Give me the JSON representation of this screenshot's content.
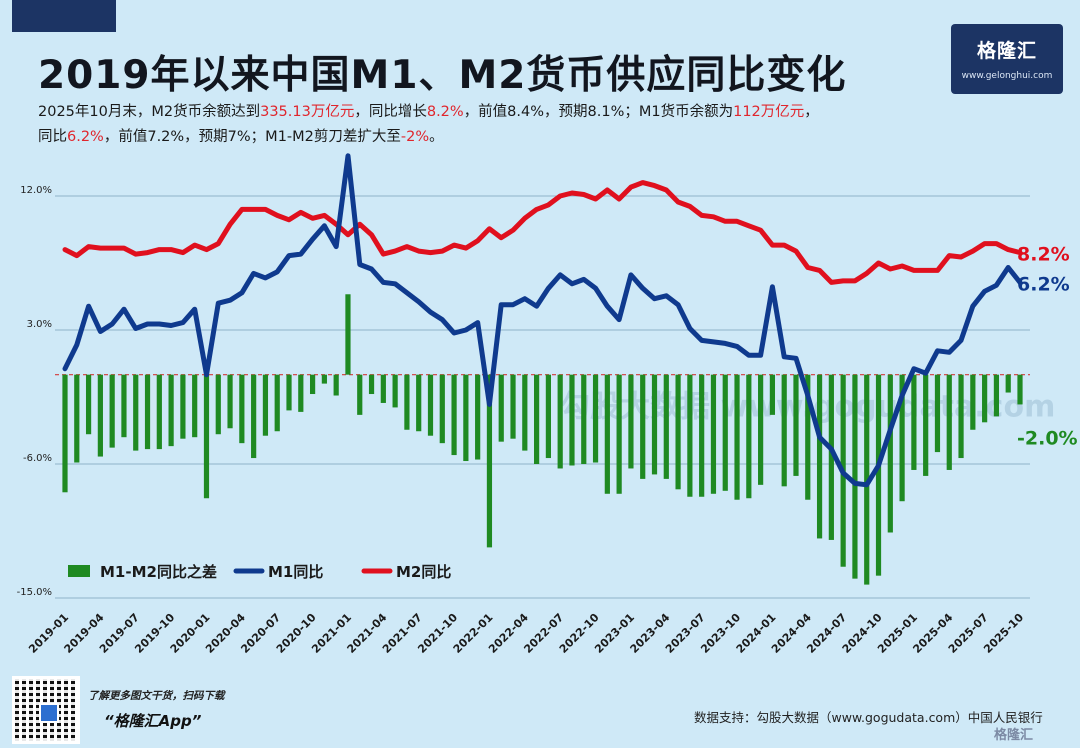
{
  "title": "2019年以来中国M1、M2货币供应同比变化",
  "brand": {
    "name": "格隆汇",
    "url": "www.gelonghui.com"
  },
  "subtitle": {
    "line1_parts": [
      {
        "text": "2025年10月末，M2货币余额达到",
        "red": false
      },
      {
        "text": "335.13万亿元",
        "red": true
      },
      {
        "text": "，同比增长",
        "red": false
      },
      {
        "text": "8.2%",
        "red": true
      },
      {
        "text": "，前值8.4%，预期8.1%；M1货币余额为",
        "red": false
      },
      {
        "text": "112万亿元",
        "red": true
      },
      {
        "text": "，",
        "red": false
      }
    ],
    "line2_parts": [
      {
        "text": "同比",
        "red": false
      },
      {
        "text": "6.2%",
        "red": true
      },
      {
        "text": "，前值7.2%，预期7%；M1-M2剪刀差扩大至",
        "red": false
      },
      {
        "text": "-2%",
        "red": true
      },
      {
        "text": "。",
        "red": false
      }
    ]
  },
  "chart_data": {
    "type": "line",
    "x": [
      "2019-01",
      "2019-02",
      "2019-03",
      "2019-04",
      "2019-05",
      "2019-06",
      "2019-07",
      "2019-08",
      "2019-09",
      "2019-10",
      "2019-11",
      "2019-12",
      "2020-01",
      "2020-02",
      "2020-03",
      "2020-04",
      "2020-05",
      "2020-06",
      "2020-07",
      "2020-08",
      "2020-09",
      "2020-10",
      "2020-11",
      "2020-12",
      "2021-01",
      "2021-02",
      "2021-03",
      "2021-04",
      "2021-05",
      "2021-06",
      "2021-07",
      "2021-08",
      "2021-09",
      "2021-10",
      "2021-11",
      "2021-12",
      "2022-01",
      "2022-02",
      "2022-03",
      "2022-04",
      "2022-05",
      "2022-06",
      "2022-07",
      "2022-08",
      "2022-09",
      "2022-10",
      "2022-11",
      "2022-12",
      "2023-01",
      "2023-02",
      "2023-03",
      "2023-04",
      "2023-05",
      "2023-06",
      "2023-07",
      "2023-08",
      "2023-09",
      "2023-10",
      "2023-11",
      "2023-12",
      "2024-01",
      "2024-02",
      "2024-03",
      "2024-04",
      "2024-05",
      "2024-06",
      "2024-07",
      "2024-08",
      "2024-09",
      "2024-10",
      "2024-11",
      "2024-12",
      "2025-01",
      "2025-02",
      "2025-03",
      "2025-04",
      "2025-05",
      "2025-06",
      "2025-07",
      "2025-08",
      "2025-09",
      "2025-10"
    ],
    "x_tick_labels": [
      "2019-01",
      "2019-04",
      "2019-07",
      "2019-10",
      "2020-01",
      "2020-04",
      "2020-07",
      "2020-10",
      "2021-01",
      "2021-04",
      "2021-07",
      "2021-10",
      "2022-01",
      "2022-04",
      "2022-07",
      "2022-10",
      "2023-01",
      "2023-04",
      "2023-07",
      "2023-10",
      "2024-01",
      "2024-04",
      "2024-07",
      "2024-10",
      "2025-01",
      "2025-04",
      "2025-07",
      "2025-10"
    ],
    "series": [
      {
        "name": "M1-M2同比之差",
        "kind": "bar",
        "color": "#1f8a22",
        "values": [
          -7.9,
          -5.9,
          -4.0,
          -5.5,
          -4.9,
          -4.2,
          -5.1,
          -5.0,
          -5.0,
          -4.8,
          -4.3,
          -4.2,
          -8.3,
          -4.0,
          -3.6,
          -4.6,
          -5.6,
          -4.1,
          -3.8,
          -2.4,
          -2.5,
          -1.3,
          -0.6,
          -1.4,
          5.4,
          -2.7,
          -1.3,
          -1.9,
          -2.2,
          -3.7,
          -3.8,
          -4.1,
          -4.6,
          -5.4,
          -5.8,
          -5.7,
          -11.6,
          -4.5,
          -4.3,
          -5.1,
          -6.0,
          -5.6,
          -6.3,
          -6.1,
          -6.0,
          -5.9,
          -8.0,
          -8.0,
          -6.3,
          -7.0,
          -6.7,
          -7.0,
          -7.7,
          -8.2,
          -8.2,
          -8.0,
          -7.8,
          -8.4,
          -8.3,
          -7.4,
          -2.7,
          -7.5,
          -6.8,
          -8.4,
          -11.0,
          -11.1,
          -12.9,
          -13.7,
          -14.1,
          -13.5,
          -10.6,
          -8.5,
          -6.4,
          -6.8,
          -5.2,
          -6.4,
          -5.6,
          -3.7,
          -3.2,
          -2.8,
          -1.2,
          -2.0
        ]
      },
      {
        "name": "M1同比",
        "kind": "line",
        "color": "#0f3a8e",
        "values": [
          0.4,
          2.0,
          4.6,
          2.9,
          3.4,
          4.4,
          3.1,
          3.4,
          3.4,
          3.3,
          3.5,
          4.4,
          0.0,
          4.8,
          5.0,
          5.5,
          6.8,
          6.5,
          6.9,
          8.0,
          8.1,
          9.1,
          10.0,
          8.6,
          14.7,
          7.4,
          7.1,
          6.2,
          6.1,
          5.5,
          4.9,
          4.2,
          3.7,
          2.8,
          3.0,
          3.5,
          -2.0,
          4.7,
          4.7,
          5.1,
          4.6,
          5.8,
          6.7,
          6.1,
          6.4,
          5.8,
          4.6,
          3.7,
          6.7,
          5.8,
          5.1,
          5.3,
          4.7,
          3.1,
          2.3,
          2.2,
          2.1,
          1.9,
          1.3,
          1.3,
          5.9,
          1.2,
          1.1,
          -1.4,
          -4.2,
          -5.0,
          -6.6,
          -7.3,
          -7.4,
          -6.1,
          -3.7,
          -1.4,
          0.4,
          0.1,
          1.6,
          1.5,
          2.3,
          4.6,
          5.6,
          6.0,
          7.2,
          6.2
        ]
      },
      {
        "name": "M2同比",
        "kind": "line",
        "color": "#e0101e",
        "values": [
          8.4,
          8.0,
          8.6,
          8.5,
          8.5,
          8.5,
          8.1,
          8.2,
          8.4,
          8.4,
          8.2,
          8.7,
          8.4,
          8.8,
          10.1,
          11.1,
          11.1,
          11.1,
          10.7,
          10.4,
          10.9,
          10.5,
          10.7,
          10.1,
          9.4,
          10.1,
          9.4,
          8.1,
          8.3,
          8.6,
          8.3,
          8.2,
          8.3,
          8.7,
          8.5,
          9.0,
          9.8,
          9.2,
          9.7,
          10.5,
          11.1,
          11.4,
          12.0,
          12.2,
          12.1,
          11.8,
          12.4,
          11.8,
          12.6,
          12.9,
          12.7,
          12.4,
          11.6,
          11.3,
          10.7,
          10.6,
          10.3,
          10.3,
          10.0,
          9.7,
          8.7,
          8.7,
          8.3,
          7.2,
          7.0,
          6.2,
          6.3,
          6.3,
          6.8,
          7.5,
          7.1,
          7.3,
          7.0,
          7.0,
          7.0,
          8.0,
          7.9,
          8.3,
          8.8,
          8.8,
          8.4,
          8.2
        ]
      }
    ],
    "ylim": [
      -15,
      15
    ],
    "y_ticks": [
      "12.0%",
      "3.0%",
      "-6.0%",
      "-15.0%"
    ],
    "y_tick_values": [
      12,
      3,
      -6,
      -15
    ],
    "end_labels": [
      "-2.0%",
      "6.2%",
      "8.2%"
    ],
    "reference_line": 0,
    "grid": true,
    "legend_position": "bottom-left",
    "watermark": "勾股大数据 www.gogudata.com"
  },
  "footer": {
    "note": "了解更多图文干货，扫码下载",
    "app": "“格隆汇App”",
    "source": "数据支持：勾股大数据（www.gogudata.com）中国人民银行",
    "corner_brand": "格隆汇"
  }
}
